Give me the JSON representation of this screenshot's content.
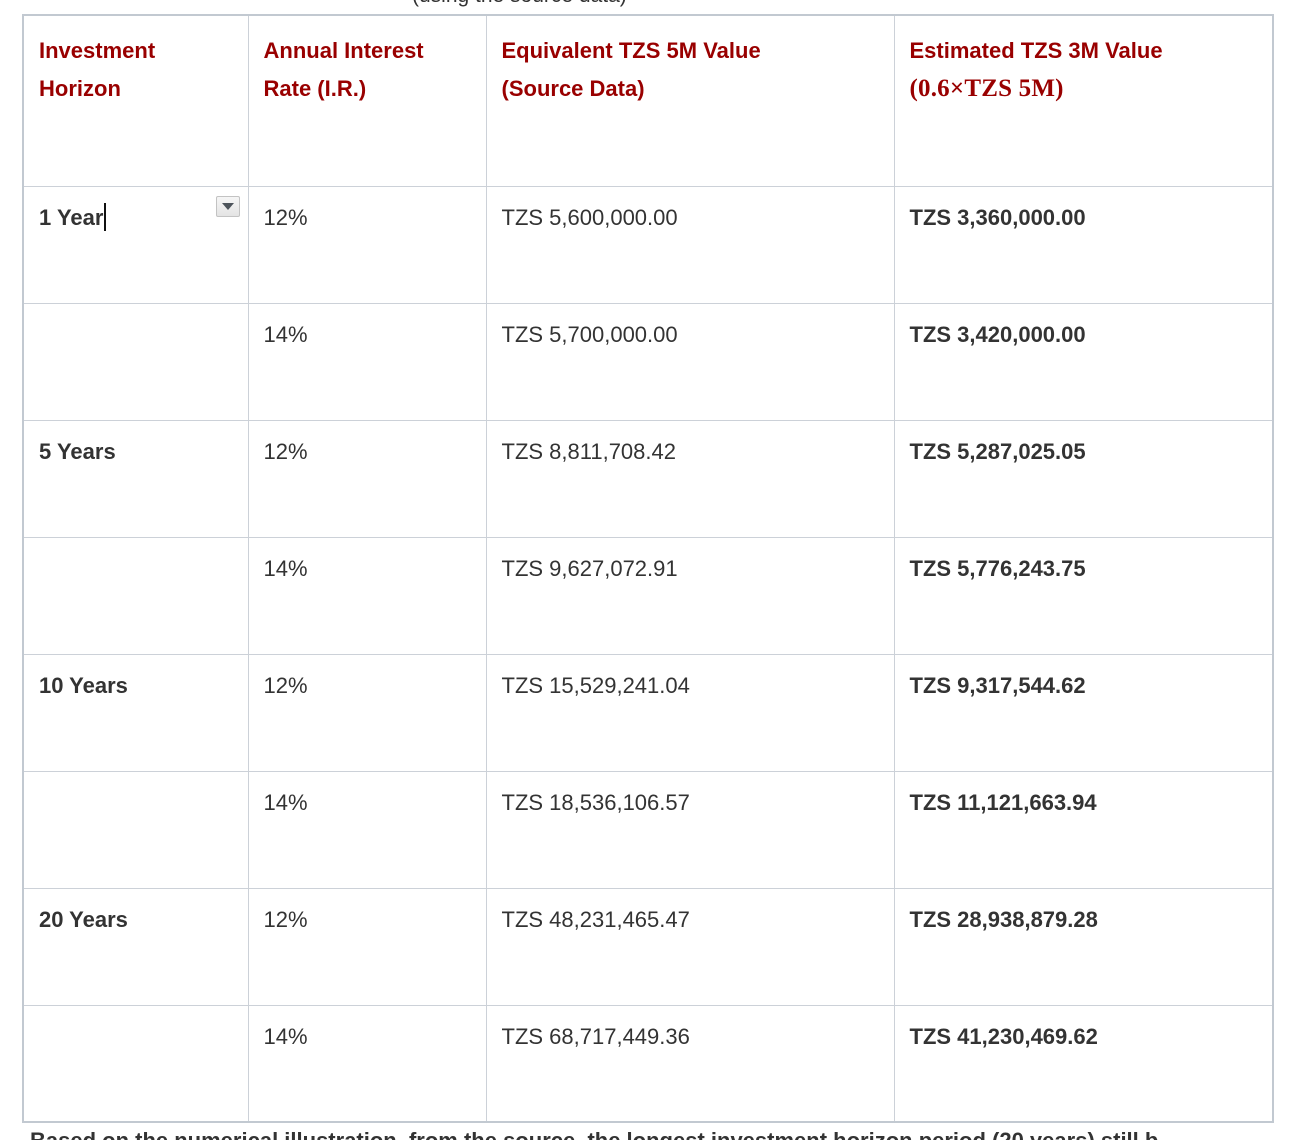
{
  "page": {
    "top_clipped_caption": "(using the source data)",
    "bottom_clipped_paragraph": "Based on the numerical illustration, from the source, the longest investment horizon period (20 years) still b"
  },
  "colors": {
    "header_red": "#990000",
    "body_text": "#333333",
    "border": "#ccd1d8"
  },
  "icons": {
    "dropdown": "dropdown-arrow-icon"
  },
  "table": {
    "header": [
      {
        "line1": "Investment",
        "line2": "Horizon"
      },
      {
        "line1": "Annual Interest",
        "line2": "Rate (I.R.)"
      },
      {
        "line1": "Equivalent TZS 5M Value",
        "line2": "(Source Data)"
      },
      {
        "line1": "Estimated TZS 3M Value",
        "line2": "(0.6×TZS 5M)"
      }
    ],
    "rows": [
      {
        "horizon": "1 Year",
        "rate": "12%",
        "value_5m": "TZS 5,600,000.00",
        "value_3m": "TZS 3,360,000.00",
        "editing": true
      },
      {
        "horizon": "",
        "rate": "14%",
        "value_5m": "TZS 5,700,000.00",
        "value_3m": "TZS 3,420,000.00",
        "editing": false
      },
      {
        "horizon": "5 Years",
        "rate": "12%",
        "value_5m": "TZS 8,811,708.42",
        "value_3m": "TZS 5,287,025.05",
        "editing": false
      },
      {
        "horizon": "",
        "rate": "14%",
        "value_5m": "TZS 9,627,072.91",
        "value_3m": "TZS 5,776,243.75",
        "editing": false
      },
      {
        "horizon": "10 Years",
        "rate": "12%",
        "value_5m": "TZS 15,529,241.04",
        "value_3m": "TZS 9,317,544.62",
        "editing": false
      },
      {
        "horizon": "",
        "rate": "14%",
        "value_5m": "TZS 18,536,106.57",
        "value_3m": "TZS 11,121,663.94",
        "editing": false
      },
      {
        "horizon": "20 Years",
        "rate": "12%",
        "value_5m": "TZS 48,231,465.47",
        "value_3m": "TZS 28,938,879.28",
        "editing": false
      },
      {
        "horizon": "",
        "rate": "14%",
        "value_5m": "TZS 68,717,449.36",
        "value_3m": "TZS 41,230,469.62",
        "editing": false
      }
    ]
  }
}
